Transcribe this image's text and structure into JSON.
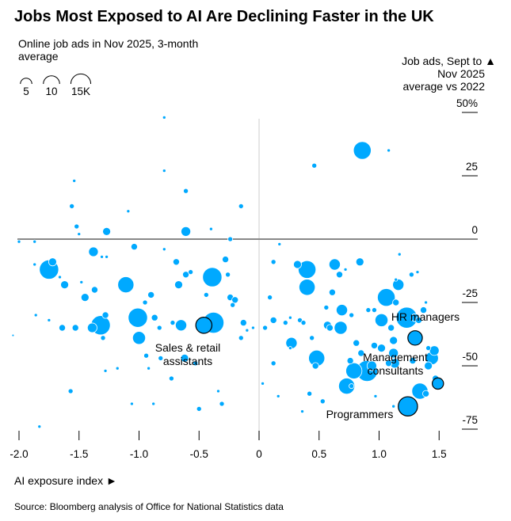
{
  "title": "Jobs Most Exposed to AI Are Declining Faster in the UK",
  "size_legend": {
    "title_lines": [
      "Online job ads in Nov 2025, 3-month",
      "average"
    ],
    "items": [
      {
        "value": 5,
        "label": "5"
      },
      {
        "value": 10,
        "label": "10"
      },
      {
        "value": 15,
        "label": "15K"
      }
    ]
  },
  "source": "Source: Bloomberg analysis of Office for National Statistics data",
  "chart_data": {
    "type": "scatter",
    "title": "Jobs Most Exposed to AI Are Declining Faster in the UK",
    "xlabel": "AI exposure index ►",
    "ylabel_lines": [
      "Job ads, Sept to ▲",
      "Nov 2025",
      "average vs 2022"
    ],
    "xlim": [
      -2.0,
      1.6
    ],
    "ylim": [
      -78,
      50
    ],
    "x_ticks": [
      {
        "v": -2.0,
        "label": "-2.0"
      },
      {
        "v": -1.5,
        "label": "-1.5"
      },
      {
        "v": -1.0,
        "label": "-1.0"
      },
      {
        "v": -0.5,
        "label": "-0.5"
      },
      {
        "v": 0,
        "label": "0"
      },
      {
        "v": 0.5,
        "label": "0.5"
      },
      {
        "v": 1.0,
        "label": "1.0"
      },
      {
        "v": 1.5,
        "label": "1.5"
      }
    ],
    "y_ticks": [
      {
        "v": 50,
        "label": "50%"
      },
      {
        "v": 25,
        "label": "25"
      },
      {
        "v": 0,
        "label": "0"
      },
      {
        "v": -25,
        "label": "-25"
      },
      {
        "v": -50,
        "label": "-50"
      },
      {
        "v": -75,
        "label": "-75"
      }
    ],
    "grid": false,
    "bubble_color": "#00a9ff",
    "size_unit": "thousand job ads",
    "points": [
      [
        -0.79,
        48,
        0.4
      ],
      [
        0.86,
        35,
        11.8
      ],
      [
        1.08,
        35,
        0.4
      ],
      [
        0.46,
        29,
        0.9
      ],
      [
        -1.54,
        23,
        0.4
      ],
      [
        -0.79,
        27,
        0.4
      ],
      [
        -0.61,
        19,
        0.9
      ],
      [
        -1.56,
        13,
        0.9
      ],
      [
        -0.15,
        13,
        0.9
      ],
      [
        -1.09,
        11,
        0.4
      ],
      [
        -1.52,
        5,
        0.9
      ],
      [
        -1.5,
        2,
        0.4
      ],
      [
        -1.27,
        3,
        2.4
      ],
      [
        -0.61,
        3,
        3.5
      ],
      [
        -0.4,
        4,
        0.4
      ],
      [
        -2.0,
        -1,
        0.4
      ],
      [
        -0.24,
        0,
        0.9
      ],
      [
        -1.87,
        -1,
        0.4
      ],
      [
        -1.75,
        -12,
        14
      ],
      [
        -1.72,
        -9,
        2.4
      ],
      [
        -1.87,
        -10,
        0.4
      ],
      [
        -1.66,
        -15,
        0.4
      ],
      [
        -1.62,
        -18,
        2.4
      ],
      [
        -1.48,
        -17,
        0.4
      ],
      [
        -1.38,
        -5,
        3.5
      ],
      [
        -1.31,
        -7,
        0.4
      ],
      [
        -1.27,
        -7,
        0.4
      ],
      [
        -1.11,
        -18,
        9.8
      ],
      [
        -1.04,
        -3,
        1.6
      ],
      [
        -0.79,
        -4,
        0.4
      ],
      [
        -0.69,
        -9,
        1.6
      ],
      [
        -0.61,
        -14,
        1.6
      ],
      [
        -0.57,
        -13,
        0.9
      ],
      [
        -0.39,
        -15,
        14
      ],
      [
        -0.28,
        -8,
        1.6
      ],
      [
        -0.26,
        -14,
        0.9
      ],
      [
        -0.67,
        -18,
        2.4
      ],
      [
        -0.44,
        -22,
        0.9
      ],
      [
        -0.24,
        -23,
        1.6
      ],
      [
        -0.2,
        -24,
        1.6
      ],
      [
        -0.38,
        -33,
        16.5
      ],
      [
        -1.32,
        -34,
        14
      ],
      [
        -1.28,
        -30,
        1.6
      ],
      [
        -1.39,
        -35,
        3.5
      ],
      [
        -1.64,
        -35,
        1.6
      ],
      [
        -1.53,
        -35,
        1.6
      ],
      [
        -1.86,
        -30,
        0.4
      ],
      [
        -1.75,
        -32,
        0.4
      ],
      [
        -1.45,
        -23,
        2.4
      ],
      [
        -1.37,
        -20,
        1.6
      ],
      [
        -1.01,
        -31,
        14
      ],
      [
        -0.95,
        -25,
        0.9
      ],
      [
        -0.87,
        -31,
        1.6
      ],
      [
        -0.65,
        -34,
        4.8
      ],
      [
        -0.83,
        -35,
        0.9
      ],
      [
        -1.0,
        -39,
        6.3
      ],
      [
        -0.82,
        -47,
        0.9
      ],
      [
        -0.94,
        -46,
        0.9
      ],
      [
        -0.72,
        -33,
        0.9
      ],
      [
        -0.9,
        -22,
        1.6
      ],
      [
        -0.22,
        -26,
        0.9
      ],
      [
        -0.13,
        -33,
        1.6
      ],
      [
        -0.1,
        -36,
        0.4
      ],
      [
        -0.15,
        -39,
        0.9
      ],
      [
        -0.62,
        -47,
        2.4
      ],
      [
        -0.53,
        -49,
        0.9
      ],
      [
        -0.73,
        -55,
        0.9
      ],
      [
        -1.3,
        -39,
        0.9
      ],
      [
        -1.18,
        -51,
        0.4
      ],
      [
        -1.28,
        -52,
        0.4
      ],
      [
        -0.92,
        -51,
        0.4
      ],
      [
        -1.06,
        -65,
        0.4
      ],
      [
        -0.88,
        -65,
        0.4
      ],
      [
        -0.34,
        -60,
        0.4
      ],
      [
        -0.31,
        -65,
        0.9
      ],
      [
        -0.5,
        -67,
        0.9
      ],
      [
        -1.57,
        -60,
        0.9
      ],
      [
        -1.83,
        -74,
        0.4
      ],
      [
        -2.05,
        -38,
        0.2
      ],
      [
        0.32,
        -10,
        2.4
      ],
      [
        0.4,
        -12,
        11.8
      ],
      [
        0.4,
        -19,
        9.8
      ],
      [
        0.12,
        -9,
        0.9
      ],
      [
        0.09,
        -23,
        0.9
      ],
      [
        0.17,
        -2,
        0.4
      ],
      [
        0.63,
        -10,
        4.8
      ],
      [
        0.84,
        -9,
        2.4
      ],
      [
        0.67,
        -14,
        1.6
      ],
      [
        0.61,
        -21,
        1.6
      ],
      [
        0.72,
        -12,
        0.4
      ],
      [
        1.17,
        -6,
        0.4
      ],
      [
        1.27,
        -14,
        0.9
      ],
      [
        1.32,
        -13,
        0.4
      ],
      [
        1.16,
        -18,
        4.8
      ],
      [
        1.14,
        -16,
        0.4
      ],
      [
        1.06,
        -23,
        11.8
      ],
      [
        1.14,
        -25,
        1.6
      ],
      [
        0.26,
        -31,
        0.4
      ],
      [
        0.34,
        -32,
        0.9
      ],
      [
        0.37,
        -33,
        0.9
      ],
      [
        0.57,
        -34,
        2.4
      ],
      [
        0.69,
        -28,
        4.8
      ],
      [
        0.59,
        -35,
        1.6
      ],
      [
        0.27,
        -41,
        4.8
      ],
      [
        0.05,
        -35,
        0.9
      ],
      [
        0.22,
        -33,
        0.9
      ],
      [
        0.44,
        -39,
        0.9
      ],
      [
        0.56,
        -27,
        0.9
      ],
      [
        0.68,
        -35,
        6.3
      ],
      [
        0.48,
        -47,
        9.8
      ],
      [
        0.47,
        -50,
        1.6
      ],
      [
        0.81,
        -41,
        1.6
      ],
      [
        0.77,
        -30,
        0.9
      ],
      [
        0.91,
        -28,
        0.9
      ],
      [
        0.96,
        -28,
        0.9
      ],
      [
        1.02,
        -32,
        6.3
      ],
      [
        1.1,
        -35,
        1.6
      ],
      [
        1.23,
        -31,
        16.5
      ],
      [
        1.37,
        -28,
        1.6
      ],
      [
        1.3,
        -31,
        2.4
      ],
      [
        1.39,
        -25,
        0.4
      ],
      [
        1.41,
        -43,
        0.9
      ],
      [
        1.46,
        -44,
        3.5
      ],
      [
        1.44,
        -47,
        6.3
      ],
      [
        1.41,
        -50,
        2.4
      ],
      [
        0.96,
        -42,
        1.6
      ],
      [
        1.02,
        -43,
        2.4
      ],
      [
        1.12,
        -40,
        2.4
      ],
      [
        1.12,
        -45,
        3.5
      ],
      [
        1.13,
        -49,
        3.5
      ],
      [
        0.85,
        -45,
        1.6
      ],
      [
        0.94,
        -50,
        3.5
      ],
      [
        0.76,
        -48,
        1.6
      ],
      [
        0.9,
        -52,
        16.5
      ],
      [
        0.79,
        -52,
        9.8
      ],
      [
        0.73,
        -58,
        9.8
      ],
      [
        0.42,
        -61,
        0.9
      ],
      [
        0.77,
        -58,
        0.9
      ],
      [
        1.08,
        -49,
        1.6
      ],
      [
        1.28,
        -48,
        1.6
      ],
      [
        1.34,
        -60,
        9.8
      ],
      [
        1.39,
        -61,
        1.6
      ],
      [
        1.47,
        -55,
        1.6
      ],
      [
        1.12,
        -66,
        0.4
      ],
      [
        0.97,
        -62,
        0.4
      ],
      [
        0.53,
        -64,
        0.9
      ],
      [
        0.36,
        -68,
        0.4
      ],
      [
        0.16,
        -62,
        0.4
      ],
      [
        0.03,
        -57,
        0.4
      ],
      [
        0.12,
        -49,
        0.9
      ],
      [
        0.26,
        -43,
        0.4
      ],
      [
        -0.05,
        -35,
        0.4
      ],
      [
        0.12,
        -32,
        1.6
      ],
      [
        1.33,
        -32,
        1.6
      ]
    ],
    "highlighted": [
      {
        "label_lines": [
          "Sales & retail",
          "assistants"
        ],
        "x": -0.46,
        "y": -34,
        "size": 9.8
      },
      {
        "label_lines": [
          "HR managers"
        ],
        "x": 1.3,
        "y": -39,
        "size": 7.9
      },
      {
        "label_lines": [
          "Management",
          "consultants"
        ],
        "x": 1.49,
        "y": -57,
        "size": 4.8
      },
      {
        "label_lines": [
          "Programmers"
        ],
        "x": 1.24,
        "y": -66,
        "size": 14
      }
    ]
  }
}
